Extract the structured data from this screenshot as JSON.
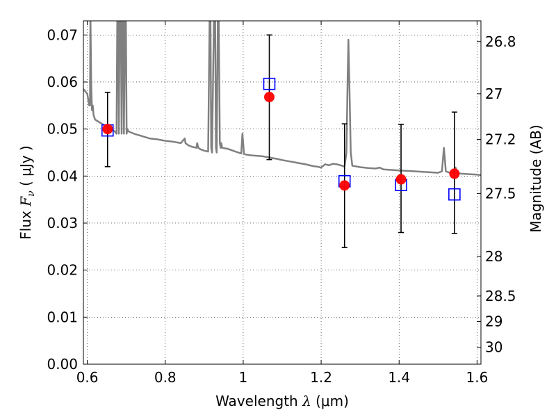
{
  "chart_data": {
    "type": "scatter",
    "xlabel_prefix": "Wavelength",
    "xlabel_symbol": "λ",
    "xlabel_unit": "(μm)",
    "ylabel_prefix": "Flux",
    "ylabel_symbol": "F",
    "ylabel_subscript": "ν",
    "ylabel_unit": "( μJy )",
    "y2label": "Magnitude (AB)",
    "xlim": [
      0.59,
      1.61
    ],
    "ylim": [
      0.0,
      0.073
    ],
    "grid": true,
    "x_ticks": [
      0.6,
      0.8,
      1.0,
      1.2,
      1.4,
      1.6
    ],
    "x_tick_labels": [
      "0.6",
      "0.8",
      "1",
      "1.2",
      "1.4",
      "1.6"
    ],
    "y_ticks": [
      0.0,
      0.01,
      0.02,
      0.03,
      0.04,
      0.05,
      0.06,
      0.07
    ],
    "y_tick_labels": [
      "0.00",
      "0.01",
      "0.02",
      "0.03",
      "0.04",
      "0.05",
      "0.06",
      "0.07"
    ],
    "y2_ticks": [
      {
        "label": "26.8",
        "flux": 0.0686
      },
      {
        "label": "27",
        "flux": 0.0575
      },
      {
        "label": "27.2",
        "flux": 0.0478
      },
      {
        "label": "27.5",
        "flux": 0.0363
      },
      {
        "label": "28",
        "flux": 0.0229
      },
      {
        "label": "28.5",
        "flux": 0.0145
      },
      {
        "label": "29",
        "flux": 0.0091
      },
      {
        "label": "30",
        "flux": 0.0036
      }
    ],
    "series": [
      {
        "name": "model_spectrum",
        "kind": "line",
        "color": "#808080",
        "x": [
          0.59,
          0.6,
          0.603,
          0.605,
          0.607,
          0.608,
          0.61,
          0.612,
          0.614,
          0.616,
          0.62,
          0.63,
          0.64,
          0.65,
          0.66,
          0.67,
          0.675,
          0.677,
          0.679,
          0.681,
          0.683,
          0.686,
          0.688,
          0.69,
          0.692,
          0.694,
          0.697,
          0.699,
          0.701,
          0.703,
          0.705,
          0.72,
          0.74,
          0.76,
          0.78,
          0.8,
          0.82,
          0.84,
          0.85,
          0.852,
          0.855,
          0.86,
          0.87,
          0.88,
          0.882,
          0.885,
          0.89,
          0.9,
          0.91,
          0.914,
          0.916,
          0.918,
          0.92,
          0.925,
          0.928,
          0.93,
          0.932,
          0.935,
          0.937,
          0.94,
          0.942,
          0.944,
          0.946,
          0.96,
          0.98,
          0.995,
          0.998,
          1.0,
          1.002,
          1.005,
          1.02,
          1.05,
          1.07,
          1.09,
          1.1,
          1.12,
          1.14,
          1.16,
          1.18,
          1.19,
          1.2,
          1.21,
          1.22,
          1.23,
          1.24,
          1.25,
          1.26,
          1.265,
          1.268,
          1.27,
          1.272,
          1.276,
          1.28,
          1.3,
          1.32,
          1.34,
          1.35,
          1.36,
          1.38,
          1.4,
          1.42,
          1.44,
          1.46,
          1.48,
          1.5,
          1.51,
          1.515,
          1.52,
          1.53,
          1.54,
          1.545,
          1.55,
          1.56,
          1.58,
          1.6,
          1.61
        ],
        "y": [
          0.0585,
          0.0575,
          0.056,
          0.055,
          0.055,
          0.075,
          0.06,
          0.054,
          0.055,
          0.053,
          0.052,
          0.0515,
          0.051,
          0.0505,
          0.05,
          0.0495,
          0.049,
          0.075,
          0.075,
          0.049,
          0.075,
          0.075,
          0.049,
          0.075,
          0.075,
          0.049,
          0.075,
          0.075,
          0.049,
          0.05,
          0.0495,
          0.049,
          0.0485,
          0.048,
          0.0478,
          0.0475,
          0.0473,
          0.047,
          0.048,
          0.047,
          0.0468,
          0.0465,
          0.0462,
          0.046,
          0.047,
          0.046,
          0.0457,
          0.0454,
          0.0452,
          0.075,
          0.075,
          0.046,
          0.045,
          0.075,
          0.075,
          0.046,
          0.045,
          0.075,
          0.075,
          0.047,
          0.046,
          0.047,
          0.046,
          0.0458,
          0.0452,
          0.0448,
          0.049,
          0.047,
          0.0448,
          0.0446,
          0.0444,
          0.0442,
          0.0439,
          0.0436,
          0.0434,
          0.0431,
          0.0428,
          0.0425,
          0.0421,
          0.042,
          0.0418,
          0.0425,
          0.0423,
          0.0426,
          0.0425,
          0.0423,
          0.042,
          0.045,
          0.061,
          0.069,
          0.061,
          0.045,
          0.0422,
          0.0419,
          0.0417,
          0.0416,
          0.0418,
          0.0414,
          0.0413,
          0.0412,
          0.0411,
          0.041,
          0.0409,
          0.0408,
          0.0407,
          0.041,
          0.046,
          0.041,
          0.0407,
          0.0407,
          0.0418,
          0.0406,
          0.0405,
          0.0404,
          0.0403,
          0.0402
        ]
      },
      {
        "name": "model_photometry",
        "kind": "open_squares",
        "color": "#0000ff",
        "x": [
          0.652,
          1.067,
          1.26,
          1.405,
          1.542
        ],
        "y": [
          0.0497,
          0.0596,
          0.0389,
          0.0381,
          0.0361
        ]
      },
      {
        "name": "observed_photometry",
        "kind": "points_with_errorbars",
        "color": "#ff0000",
        "x": [
          0.652,
          1.067,
          1.26,
          1.405,
          1.542
        ],
        "y": [
          0.05,
          0.0568,
          0.038,
          0.0393,
          0.0405
        ],
        "yerr_low": [
          0.008,
          0.0133,
          0.0132,
          0.0113,
          0.0127
        ],
        "yerr_high": [
          0.0078,
          0.0132,
          0.0131,
          0.0117,
          0.0131
        ]
      }
    ]
  }
}
